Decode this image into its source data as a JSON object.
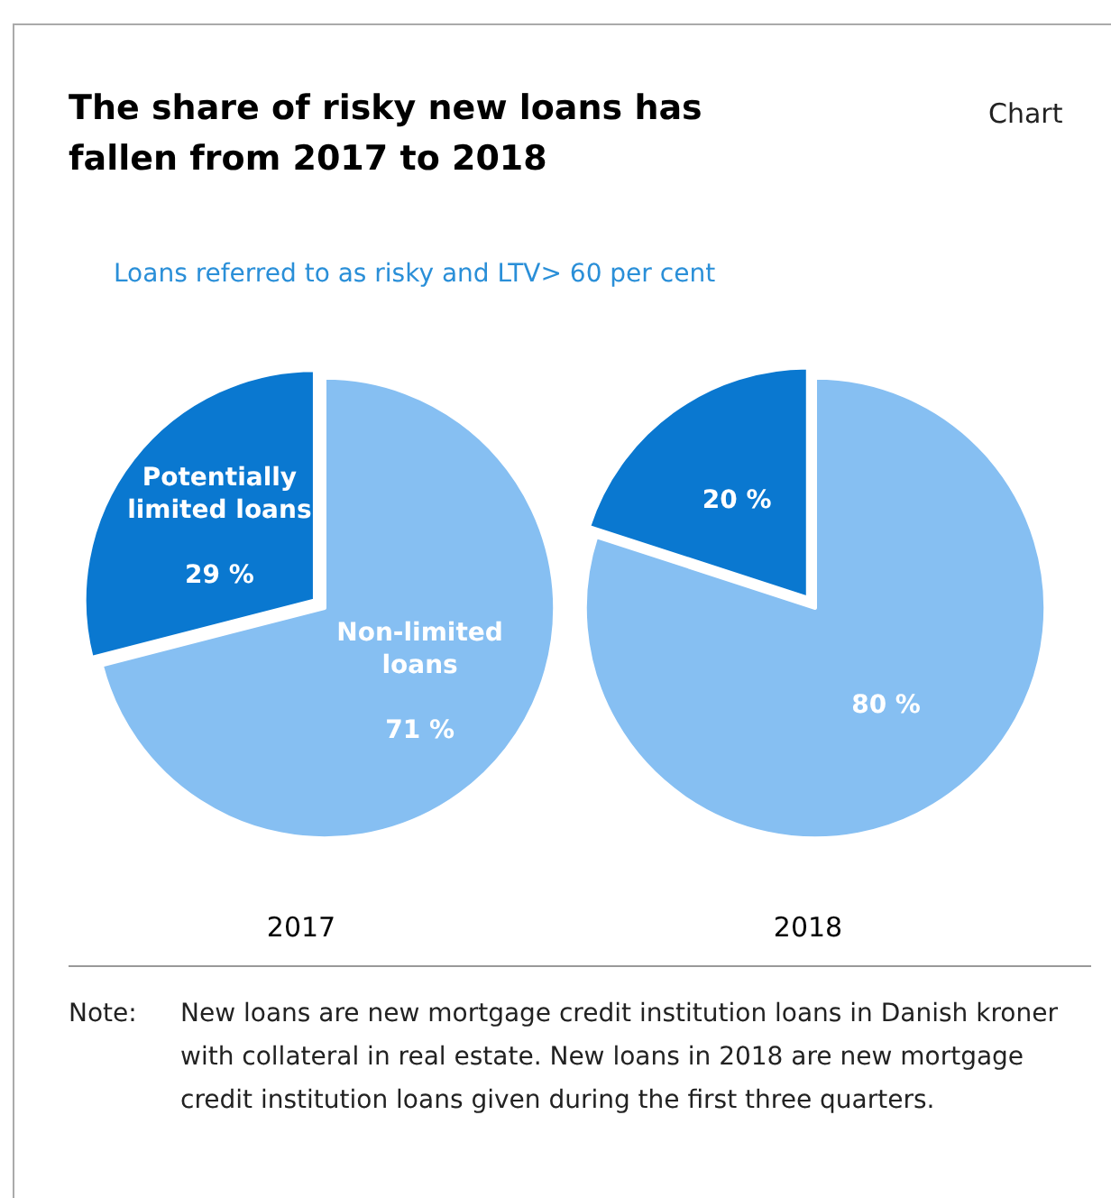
{
  "chart_data": [
    {
      "type": "pie",
      "title": "The share of risky new loans has fallen from 2017 to 2018",
      "subtitle": "Loans referred to as risky and LTV> 60 per cent",
      "annotations": [
        "Chart"
      ],
      "xlabel": "2017",
      "categories": [
        "Non-limited loans",
        "Potentially limited loans"
      ],
      "values": [
        71,
        29
      ],
      "value_labels": [
        "71 %",
        "29 %"
      ],
      "colors": [
        "#86bff2",
        "#0a78d0"
      ]
    },
    {
      "type": "pie",
      "xlabel": "2018",
      "categories": [
        null,
        null
      ],
      "values": [
        80,
        20
      ],
      "value_labels": [
        "80 %",
        "20 %"
      ],
      "colors": [
        "#86bff2",
        "#0a78d0"
      ],
      "annotations": [
        "Note:\tNew loans are new mortgage credit institution loans in Danish kroner with collateral in real estate. New loans in 2018 are new mortgage credit institution loans given during the first three quarters."
      ]
    }
  ]
}
